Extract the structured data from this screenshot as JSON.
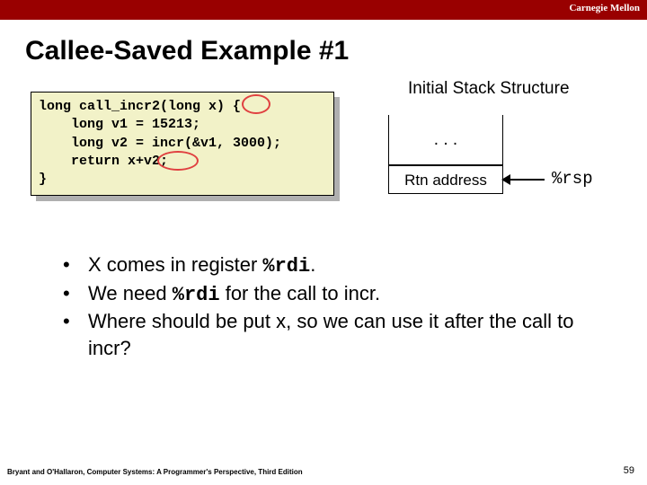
{
  "brand": "Carnegie Mellon",
  "title": "Callee-Saved Example #1",
  "code": {
    "l1": "long call_incr2(long x) {",
    "l2": "    long v1 = 15213;",
    "l3": "    long v2 = incr(&v1, 3000);",
    "l4": "    return x+v2;",
    "l5": "}"
  },
  "stack": {
    "title": "Initial Stack Structure",
    "dots": ". . .",
    "rtn": "Rtn address",
    "rsp": "%rsp"
  },
  "bullets": {
    "b1_pre": "X comes in register ",
    "b1_code": "%rdi",
    "b1_post": ".",
    "b2_pre": "We need ",
    "b2_code": "%rdi",
    "b2_post": "  for the call to incr.",
    "b3": "Where should be put x, so we can use it after the call to incr?"
  },
  "footer": {
    "left": "Bryant and O'Hallaron, Computer Systems: A Programmer's Perspective, Third Edition",
    "pagenum": "59"
  },
  "colors": {
    "header": "#990000",
    "codebg": "#f2f2c8",
    "shadow": "#b0b0b0",
    "oval": "#e04040"
  }
}
